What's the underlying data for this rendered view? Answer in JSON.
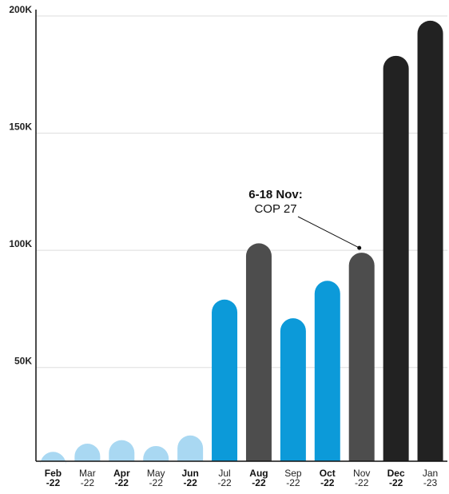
{
  "chart_data": {
    "type": "bar",
    "categories": [
      "Feb -22",
      "Mar -22",
      "Apr -22",
      "May -22",
      "Jun -22",
      "Jul -22",
      "Aug -22",
      "Sep -22",
      "Oct -22",
      "Nov -22",
      "Dec -22",
      "Jan -23"
    ],
    "x_labels": [
      {
        "line1": "Feb",
        "line2": "-22",
        "bold": true
      },
      {
        "line1": "Mar",
        "line2": "-22",
        "bold": false
      },
      {
        "line1": "Apr",
        "line2": "-22",
        "bold": true
      },
      {
        "line1": "May",
        "line2": "-22",
        "bold": false
      },
      {
        "line1": "Jun",
        "line2": "-22",
        "bold": true
      },
      {
        "line1": "Jul",
        "line2": "-22",
        "bold": false
      },
      {
        "line1": "Aug",
        "line2": "-22",
        "bold": true
      },
      {
        "line1": "Sep",
        "line2": "-22",
        "bold": false
      },
      {
        "line1": "Oct",
        "line2": "-22",
        "bold": true
      },
      {
        "line1": "Nov",
        "line2": "-22",
        "bold": false
      },
      {
        "line1": "Dec",
        "line2": "-22",
        "bold": true
      },
      {
        "line1": "Jan",
        "line2": "-23",
        "bold": false
      }
    ],
    "values": [
      14000,
      17500,
      19000,
      16500,
      21000,
      79000,
      103000,
      71000,
      87000,
      99000,
      183000,
      198000
    ],
    "bar_colors": [
      "#a9d8f2",
      "#a9d8f2",
      "#a9d8f2",
      "#a9d8f2",
      "#a9d8f2",
      "#0c9ad9",
      "#4d4d4d",
      "#0c9ad9",
      "#0c9ad9",
      "#4d4d4d",
      "#222222",
      "#222222"
    ],
    "yticks": [
      {
        "value": 50000,
        "label": "50K"
      },
      {
        "value": 100000,
        "label": "100K"
      },
      {
        "value": 150000,
        "label": "150K"
      },
      {
        "value": 200000,
        "label": "200K"
      }
    ],
    "ylim": [
      10000,
      200000
    ],
    "grid": true,
    "annotation": {
      "title": "6-18 Nov:",
      "text": "COP 27",
      "target_category": "Nov -22"
    },
    "colors": {
      "light_blue": "#a9d8f2",
      "blue": "#0c9ad9",
      "dark_gray": "#4d4d4d",
      "black": "#222222",
      "grid": "#dddddd",
      "axis": "#111111"
    }
  }
}
